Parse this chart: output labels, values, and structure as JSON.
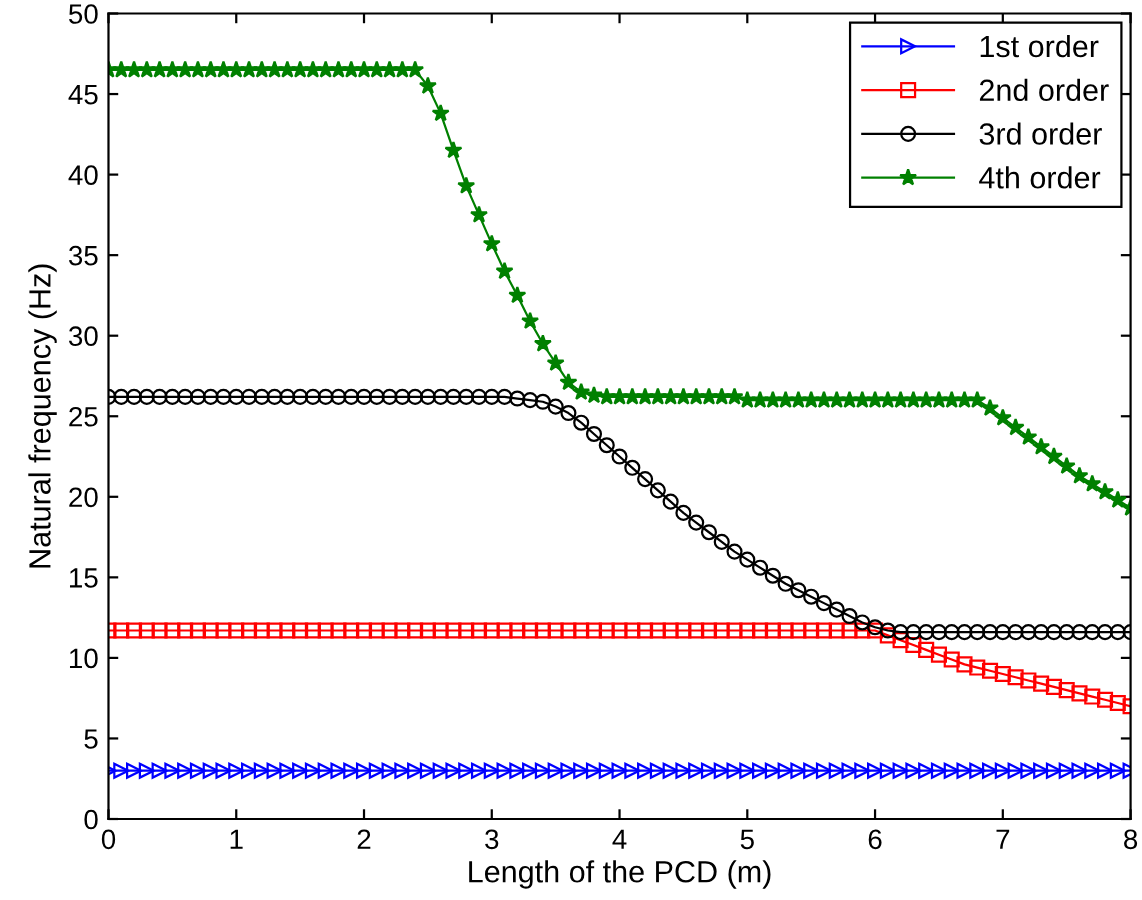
{
  "chart_data": {
    "type": "line",
    "xlabel": "Length of the PCD (m)",
    "ylabel": "Natural frequency (Hz)",
    "x": [
      0,
      0.1,
      0.2,
      0.3,
      0.4,
      0.5,
      0.6,
      0.7,
      0.8,
      0.9,
      1.0,
      1.1,
      1.2,
      1.3,
      1.4,
      1.5,
      1.6,
      1.7,
      1.8,
      1.9,
      2.0,
      2.1,
      2.2,
      2.3,
      2.4,
      2.5,
      2.6,
      2.7,
      2.8,
      2.9,
      3.0,
      3.1,
      3.2,
      3.3,
      3.4,
      3.5,
      3.6,
      3.7,
      3.8,
      3.9,
      4.0,
      4.1,
      4.2,
      4.3,
      4.4,
      4.5,
      4.6,
      4.7,
      4.8,
      4.9,
      5.0,
      5.1,
      5.2,
      5.3,
      5.4,
      5.5,
      5.6,
      5.7,
      5.8,
      5.9,
      6.0,
      6.1,
      6.2,
      6.3,
      6.4,
      6.5,
      6.6,
      6.7,
      6.8,
      6.9,
      7.0,
      7.1,
      7.2,
      7.3,
      7.4,
      7.5,
      7.6,
      7.7,
      7.8,
      7.9,
      8.0
    ],
    "series": [
      {
        "name": "1st order",
        "color": "#0000ff",
        "marker": "triangle",
        "values": [
          3.0,
          3.0,
          3.0,
          3.0,
          3.0,
          3.0,
          3.0,
          3.0,
          3.0,
          3.0,
          3.0,
          3.0,
          3.0,
          3.0,
          3.0,
          3.0,
          3.0,
          3.0,
          3.0,
          3.0,
          3.0,
          3.0,
          3.0,
          3.0,
          3.0,
          3.0,
          3.0,
          3.0,
          3.0,
          3.0,
          3.0,
          3.0,
          3.0,
          3.0,
          3.0,
          3.0,
          3.0,
          3.0,
          3.0,
          3.0,
          3.0,
          3.0,
          3.0,
          3.0,
          3.0,
          3.0,
          3.0,
          3.0,
          3.0,
          3.0,
          3.0,
          3.0,
          3.0,
          3.0,
          3.0,
          3.0,
          3.0,
          3.0,
          3.0,
          3.0,
          3.0,
          3.0,
          3.0,
          3.0,
          3.0,
          3.0,
          3.0,
          3.0,
          3.0,
          3.0,
          3.0,
          3.0,
          3.0,
          3.0,
          3.0,
          3.0,
          3.0,
          3.0,
          3.0,
          3.0,
          3.0
        ]
      },
      {
        "name": "2nd order",
        "color": "#ff0000",
        "marker": "square",
        "values": [
          11.7,
          11.7,
          11.7,
          11.7,
          11.7,
          11.7,
          11.7,
          11.7,
          11.7,
          11.7,
          11.7,
          11.7,
          11.7,
          11.7,
          11.7,
          11.7,
          11.7,
          11.7,
          11.7,
          11.7,
          11.7,
          11.7,
          11.7,
          11.7,
          11.7,
          11.7,
          11.7,
          11.7,
          11.7,
          11.7,
          11.7,
          11.7,
          11.7,
          11.7,
          11.7,
          11.7,
          11.7,
          11.7,
          11.7,
          11.7,
          11.7,
          11.7,
          11.7,
          11.7,
          11.7,
          11.7,
          11.7,
          11.7,
          11.7,
          11.7,
          11.7,
          11.7,
          11.7,
          11.7,
          11.7,
          11.7,
          11.7,
          11.7,
          11.7,
          11.7,
          11.7,
          11.4,
          11.1,
          10.8,
          10.5,
          10.2,
          9.9,
          9.6,
          9.4,
          9.2,
          9.0,
          8.8,
          8.6,
          8.4,
          8.2,
          8.0,
          7.8,
          7.6,
          7.4,
          7.2,
          7.0
        ]
      },
      {
        "name": "3rd order",
        "color": "#000000",
        "marker": "circle",
        "values": [
          26.2,
          26.2,
          26.2,
          26.2,
          26.2,
          26.2,
          26.2,
          26.2,
          26.2,
          26.2,
          26.2,
          26.2,
          26.2,
          26.2,
          26.2,
          26.2,
          26.2,
          26.2,
          26.2,
          26.2,
          26.2,
          26.2,
          26.2,
          26.2,
          26.2,
          26.2,
          26.2,
          26.2,
          26.2,
          26.2,
          26.2,
          26.2,
          26.1,
          26.0,
          25.9,
          25.6,
          25.2,
          24.6,
          23.9,
          23.2,
          22.5,
          21.8,
          21.1,
          20.4,
          19.7,
          19.0,
          18.4,
          17.8,
          17.2,
          16.6,
          16.1,
          15.6,
          15.1,
          14.6,
          14.2,
          13.8,
          13.4,
          13.0,
          12.6,
          12.2,
          11.9,
          11.7,
          11.6,
          11.6,
          11.6,
          11.6,
          11.6,
          11.6,
          11.6,
          11.6,
          11.6,
          11.6,
          11.6,
          11.6,
          11.6,
          11.6,
          11.6,
          11.6,
          11.6,
          11.6,
          11.6
        ]
      },
      {
        "name": "4th order",
        "color": "#008000",
        "marker": "star",
        "values": [
          46.5,
          46.5,
          46.5,
          46.5,
          46.5,
          46.5,
          46.5,
          46.5,
          46.5,
          46.5,
          46.5,
          46.5,
          46.5,
          46.5,
          46.5,
          46.5,
          46.5,
          46.5,
          46.5,
          46.5,
          46.5,
          46.5,
          46.5,
          46.5,
          46.5,
          45.5,
          43.8,
          41.5,
          39.3,
          37.5,
          35.7,
          34.0,
          32.5,
          30.9,
          29.5,
          28.3,
          27.1,
          26.5,
          26.3,
          26.2,
          26.2,
          26.2,
          26.2,
          26.2,
          26.2,
          26.2,
          26.2,
          26.2,
          26.2,
          26.2,
          26.0,
          26.0,
          26.0,
          26.0,
          26.0,
          26.0,
          26.0,
          26.0,
          26.0,
          26.0,
          26.0,
          26.0,
          26.0,
          26.0,
          26.0,
          26.0,
          26.0,
          26.0,
          26.0,
          25.5,
          24.9,
          24.3,
          23.7,
          23.1,
          22.5,
          21.9,
          21.3,
          20.8,
          20.3,
          19.8,
          19.3
        ]
      }
    ],
    "xlim": [
      0,
      8
    ],
    "xticks": [
      0,
      1,
      2,
      3,
      4,
      5,
      6,
      7,
      8
    ],
    "ylim": [
      0,
      50
    ],
    "yticks": [
      0,
      5,
      10,
      15,
      20,
      25,
      30,
      35,
      40,
      45,
      50
    ],
    "grid": false,
    "legend": "top right"
  }
}
